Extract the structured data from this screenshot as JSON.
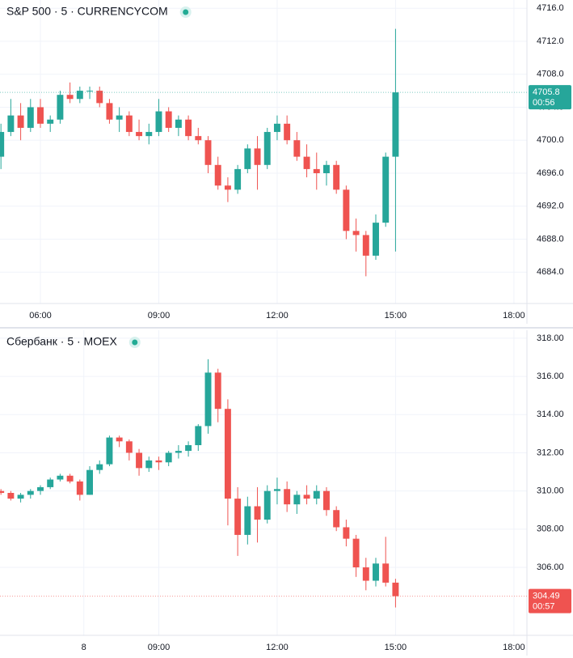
{
  "chart_data": [
    {
      "type": "candlestick",
      "title": "S&P 500 · 5 · CURRENCYCOM",
      "up_color": "#26a69a",
      "down_color": "#ef5350",
      "x": [
        5.0,
        5.25,
        5.5,
        5.75,
        6.0,
        6.25,
        6.5,
        6.75,
        7.0,
        7.25,
        7.5,
        7.75,
        8.0,
        8.25,
        8.5,
        8.75,
        9.0,
        9.25,
        9.5,
        9.75,
        10.0,
        10.25,
        10.5,
        10.75,
        11.0,
        11.25,
        11.5,
        11.75,
        12.0,
        12.25,
        12.5,
        12.75,
        13.0,
        13.25,
        13.5,
        13.75,
        14.0,
        14.25,
        14.5,
        14.75,
        15.0
      ],
      "open": [
        4698,
        4701,
        4703,
        4701.5,
        4704,
        4702,
        4702.5,
        4705.5,
        4705,
        4706,
        4706,
        4704.5,
        4702.5,
        4703,
        4701,
        4700.5,
        4701,
        4703.5,
        4701.5,
        4702.5,
        4700.5,
        4700,
        4697,
        4694.5,
        4694,
        4696.5,
        4699,
        4697,
        4701,
        4702,
        4700,
        4698,
        4696.5,
        4696,
        4697,
        4694,
        4689,
        4688.5,
        4686,
        4690,
        4698
      ],
      "high": [
        4702,
        4705,
        4704.5,
        4705,
        4705,
        4703,
        4706,
        4707,
        4706.5,
        4706.5,
        4706.5,
        4705,
        4704,
        4703.5,
        4702.5,
        4702,
        4705,
        4704,
        4703,
        4703,
        4701.5,
        4700.5,
        4698,
        4695.5,
        4697,
        4699.5,
        4700.5,
        4701.5,
        4703,
        4703,
        4701,
        4699.5,
        4698.5,
        4697.5,
        4697.5,
        4694.5,
        4690.5,
        4689,
        4691,
        4698.5,
        4713.5
      ],
      "low": [
        4696.5,
        4700.5,
        4700,
        4701,
        4701.5,
        4701,
        4702,
        4704.5,
        4704.5,
        4705,
        4704,
        4702,
        4701,
        4700.5,
        4700,
        4699.5,
        4700.5,
        4701,
        4700.5,
        4700,
        4699.5,
        4696,
        4694,
        4692.5,
        4693.5,
        4696,
        4694,
        4696.5,
        4700,
        4699.5,
        4697.5,
        4695.5,
        4694,
        4694.5,
        4693.5,
        4688,
        4686.5,
        4683.5,
        4685.5,
        4689.5,
        4686.5
      ],
      "close": [
        4701,
        4703,
        4701.5,
        4704,
        4702,
        4702.5,
        4705.5,
        4705,
        4706,
        4706,
        4704.5,
        4702.5,
        4703,
        4701,
        4700.5,
        4701,
        4703.5,
        4701.5,
        4702.5,
        4700.5,
        4700,
        4697,
        4694.5,
        4694,
        4696.5,
        4699,
        4697,
        4701,
        4702,
        4700,
        4698,
        4696.5,
        4696,
        4697,
        4694,
        4689,
        4688.5,
        4686,
        4690,
        4698,
        4705.8
      ],
      "last_price": 4705.8,
      "countdown": "00:56",
      "xlim": [
        4.976,
        18.33
      ],
      "xticks": [
        {
          "value": 6,
          "label": "06:00"
        },
        {
          "value": 9,
          "label": "09:00"
        },
        {
          "value": 12,
          "label": "12:00"
        },
        {
          "value": 15,
          "label": "15:00"
        },
        {
          "value": 18,
          "label": "18:00"
        }
      ],
      "ylim": [
        4680.2,
        4717
      ],
      "yticks": [
        {
          "value": 4684,
          "label": "4684.0"
        },
        {
          "value": 4688,
          "label": "4688.0"
        },
        {
          "value": 4692,
          "label": "4692.0"
        },
        {
          "value": 4696,
          "label": "4696.0"
        },
        {
          "value": 4700,
          "label": "4700.0"
        },
        {
          "value": 4704,
          "label": "4704.0"
        },
        {
          "value": 4708,
          "label": "4708.0"
        },
        {
          "value": 4712,
          "label": "4712.0"
        },
        {
          "value": 4716,
          "label": "4716.0"
        }
      ],
      "grid": true
    },
    {
      "type": "candlestick",
      "title": "Сбербанк · 5 · MOEX",
      "up_color": "#26a69a",
      "down_color": "#ef5350",
      "x": [
        5.0,
        5.25,
        5.5,
        5.75,
        6.0,
        6.25,
        6.5,
        6.75,
        7.0,
        7.25,
        7.5,
        7.75,
        8.0,
        8.25,
        8.5,
        8.75,
        9.0,
        9.25,
        9.5,
        9.75,
        10.0,
        10.25,
        10.5,
        10.75,
        11.0,
        11.25,
        11.5,
        11.75,
        12.0,
        12.25,
        12.5,
        12.75,
        13.0,
        13.25,
        13.5,
        13.75,
        14.0,
        14.25,
        14.5,
        14.75,
        15.0
      ],
      "open": [
        310,
        309.9,
        309.6,
        309.8,
        310,
        310.2,
        310.6,
        310.8,
        310.5,
        309.8,
        311.1,
        311.4,
        312.8,
        312.6,
        312.0,
        311.2,
        311.6,
        311.5,
        312.0,
        312.1,
        312.4,
        313.4,
        316.2,
        314.3,
        309.6,
        307.7,
        309.2,
        308.5,
        310.0,
        310.1,
        309.3,
        309.8,
        309.6,
        310.0,
        309.0,
        308.1,
        307.5,
        306.0,
        305.3,
        306.2,
        305.2
      ],
      "high": [
        310.1,
        310,
        309.9,
        310.1,
        310.3,
        310.7,
        310.9,
        310.9,
        310.6,
        311.3,
        311.6,
        312.9,
        312.9,
        312.7,
        312.2,
        311.8,
        311.8,
        312.1,
        312.4,
        312.6,
        313.5,
        316.9,
        316.4,
        314.8,
        310.2,
        309.7,
        310.2,
        310.3,
        310.7,
        310.5,
        310,
        310.3,
        310.3,
        310.2,
        309.2,
        308.5,
        307.7,
        306.5,
        306.5,
        307.6,
        305.4
      ],
      "low": [
        309.8,
        309.5,
        309.4,
        309.6,
        309.8,
        310.1,
        310.5,
        310.4,
        309.5,
        309.8,
        310.9,
        311.3,
        312.3,
        311.6,
        310.8,
        311,
        311.1,
        311.3,
        311.7,
        311.8,
        312.1,
        313,
        313.6,
        308.2,
        306.6,
        307.2,
        307.3,
        308.3,
        309.3,
        308.9,
        308.8,
        309.3,
        309.3,
        308.7,
        307.9,
        307.1,
        305.5,
        304.8,
        305,
        305,
        303.9
      ],
      "close": [
        309.9,
        309.6,
        309.8,
        310,
        310.2,
        310.6,
        310.8,
        310.5,
        309.8,
        311.1,
        311.4,
        312.8,
        312.6,
        312.0,
        311.2,
        311.6,
        311.5,
        312.0,
        312.1,
        312.4,
        313.4,
        316.2,
        314.3,
        309.6,
        307.7,
        309.2,
        308.5,
        310.0,
        310.1,
        309.3,
        309.8,
        309.6,
        310.0,
        309.0,
        308.1,
        307.5,
        306.0,
        305.3,
        306.2,
        305.2,
        304.49
      ],
      "last_price": 304.49,
      "countdown": "00:57",
      "xlim": [
        4.976,
        18.33
      ],
      "xticks": [
        {
          "value": 7.1,
          "label": "8"
        },
        {
          "value": 9,
          "label": "09:00"
        },
        {
          "value": 12,
          "label": "12:00"
        },
        {
          "value": 15,
          "label": "15:00"
        },
        {
          "value": 18,
          "label": "18:00"
        }
      ],
      "ylim": [
        302.44,
        318.42
      ],
      "yticks": [
        {
          "value": 306,
          "label": "306.00"
        },
        {
          "value": 308,
          "label": "308.00"
        },
        {
          "value": 310,
          "label": "310.00"
        },
        {
          "value": 312,
          "label": "312.00"
        },
        {
          "value": 314,
          "label": "314.00"
        },
        {
          "value": 316,
          "label": "316.00"
        },
        {
          "value": 318,
          "label": "318.00"
        }
      ],
      "grid": true
    }
  ]
}
